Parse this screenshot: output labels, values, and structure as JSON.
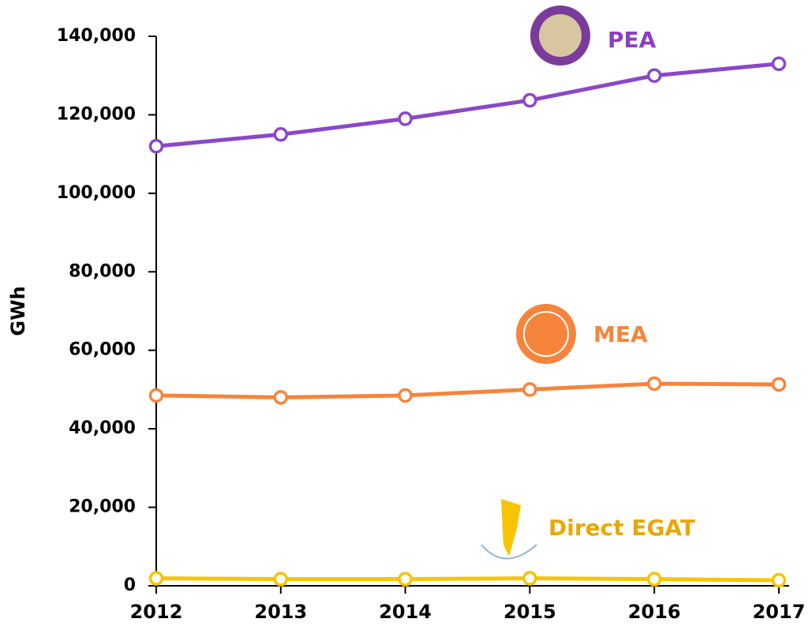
{
  "chart_data": {
    "type": "line",
    "y_label": "GWh",
    "categories": [
      "2012",
      "2013",
      "2014",
      "2015",
      "2016",
      "2017"
    ],
    "series": [
      {
        "name": "PEA",
        "color": "#8a48c8",
        "values": [
          112000,
          115000,
          119000,
          123700,
          130000,
          133000
        ]
      },
      {
        "name": "MEA",
        "color": "#f7843c",
        "values": [
          48500,
          48000,
          48500,
          50000,
          51500,
          51300
        ]
      },
      {
        "name": "Direct EGAT",
        "color": "#f8c400",
        "values": [
          1900,
          1700,
          1700,
          1900,
          1700,
          1400
        ]
      }
    ],
    "ylim": [
      0,
      140000
    ],
    "yticks": [
      {
        "value": 0,
        "label": "0"
      },
      {
        "value": 20000,
        "label": "20,000"
      },
      {
        "value": 40000,
        "label": "40,000"
      },
      {
        "value": 60000,
        "label": "60,000"
      },
      {
        "value": 80000,
        "label": "80,000"
      },
      {
        "value": 100000,
        "label": "100,000"
      },
      {
        "value": 120000,
        "label": "120,000"
      },
      {
        "value": 140000,
        "label": "140,000"
      }
    ],
    "grid": false
  }
}
